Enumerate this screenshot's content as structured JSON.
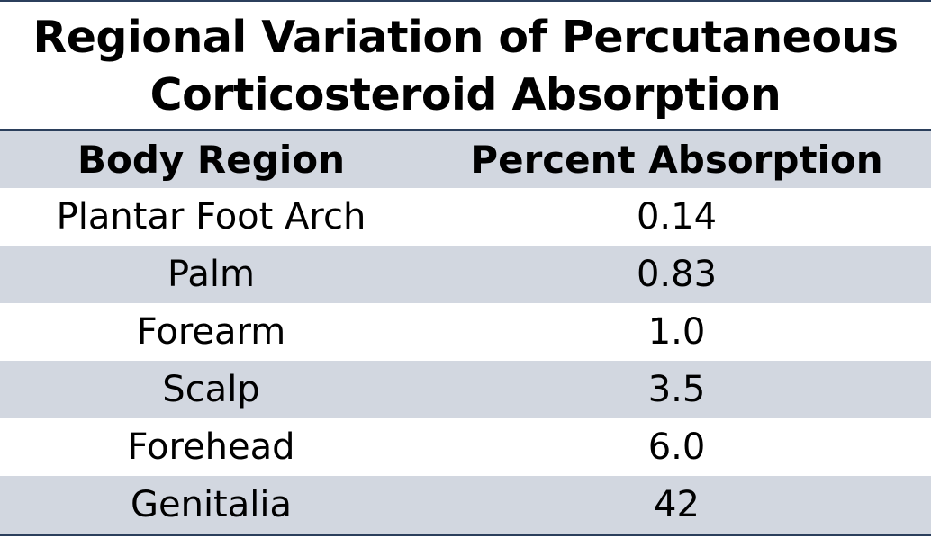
{
  "title": {
    "line1": "Regional Variation of Percutaneous",
    "line2": "Corticosteroid Absorption"
  },
  "table": {
    "headers": [
      "Body Region",
      "Percent Absorption"
    ],
    "rows": [
      {
        "region": "Plantar Foot Arch",
        "absorption": "0.14"
      },
      {
        "region": "Palm",
        "absorption": "0.83"
      },
      {
        "region": "Forearm",
        "absorption": "1.0"
      },
      {
        "region": "Scalp",
        "absorption": "3.5"
      },
      {
        "region": "Forehead",
        "absorption": "6.0"
      },
      {
        "region": "Genitalia",
        "absorption": "42"
      }
    ]
  },
  "colors": {
    "rule": "#2b3f5c",
    "band": "#d2d7e0",
    "text": "#000000"
  }
}
